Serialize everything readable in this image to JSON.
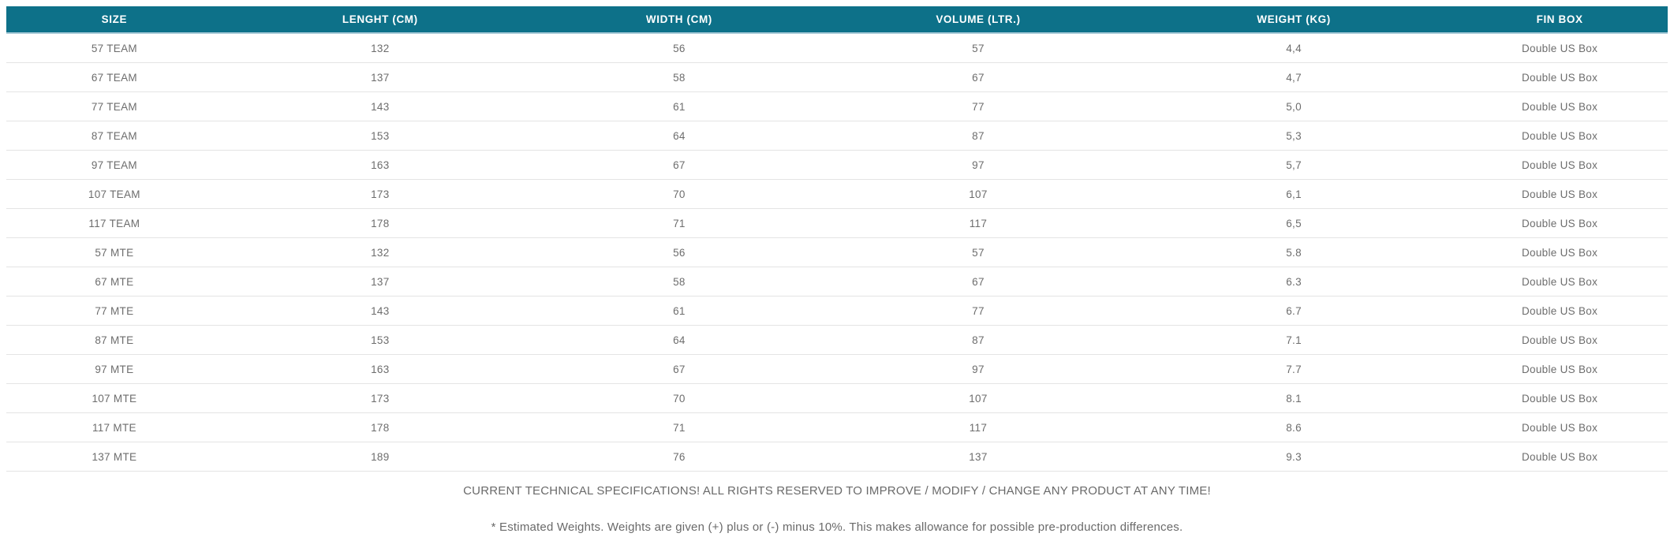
{
  "colors": {
    "header_bg": "#0d7189",
    "header_text": "#ffffff",
    "header_border": "#a9cbd8",
    "row_divider": "#e4e4e4",
    "cell_text": "#6d6d6d",
    "footer_text": "#6a6a6a"
  },
  "table": {
    "columns": [
      "SIZE",
      "LENGHT (CM)",
      "WIDTH (CM)",
      "VOLUME (LTR.)",
      "WEIGHT (KG)",
      "FIN BOX"
    ],
    "rows": [
      [
        "57 TEAM",
        "132",
        "56",
        "57",
        "4,4",
        "Double US Box"
      ],
      [
        "67 TEAM",
        "137",
        "58",
        "67",
        "4,7",
        "Double US Box"
      ],
      [
        "77 TEAM",
        "143",
        "61",
        "77",
        "5,0",
        "Double US Box"
      ],
      [
        "87 TEAM",
        "153",
        "64",
        "87",
        "5,3",
        "Double US Box"
      ],
      [
        "97 TEAM",
        "163",
        "67",
        "97",
        "5,7",
        "Double US Box"
      ],
      [
        "107 TEAM",
        "173",
        "70",
        "107",
        "6,1",
        "Double US Box"
      ],
      [
        "117 TEAM",
        "178",
        "71",
        "117",
        "6,5",
        "Double US Box"
      ],
      [
        "57 MTE",
        "132",
        "56",
        "57",
        "5.8",
        "Double US Box"
      ],
      [
        "67 MTE",
        "137",
        "58",
        "67",
        "6.3",
        "Double US Box"
      ],
      [
        "77 MTE",
        "143",
        "61",
        "77",
        "6.7",
        "Double US Box"
      ],
      [
        "87 MTE",
        "153",
        "64",
        "87",
        "7.1",
        "Double US Box"
      ],
      [
        "97 MTE",
        "163",
        "67",
        "97",
        "7.7",
        "Double US Box"
      ],
      [
        "107 MTE",
        "173",
        "70",
        "107",
        "8.1",
        "Double US Box"
      ],
      [
        "117 MTE",
        "178",
        "71",
        "117",
        "8.6",
        "Double US Box"
      ],
      [
        "137 MTE",
        "189",
        "76",
        "137",
        "9.3",
        "Double US Box"
      ]
    ]
  },
  "footnotes": {
    "disclaimer": "CURRENT TECHNICAL SPECIFICATIONS! ALL RIGHTS RESERVED TO IMPROVE / MODIFY / CHANGE ANY PRODUCT AT ANY TIME!",
    "weights_note": "* Estimated Weights. Weights are given (+) plus or (-) minus 10%. This makes allowance for possible pre-production differences."
  }
}
